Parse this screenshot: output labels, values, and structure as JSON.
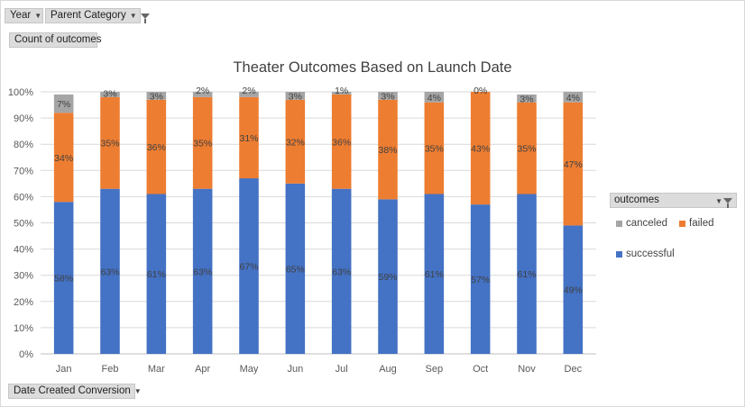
{
  "filters": {
    "year": "Year",
    "parent_category": "Parent Category",
    "values_field": "Count of outcomes",
    "axis_field": "Date Created Conversion"
  },
  "legend": {
    "title": "outcomes",
    "items": [
      {
        "name": "canceled",
        "color": "#a5a5a5"
      },
      {
        "name": "failed",
        "color": "#ed7d31"
      },
      {
        "name": "successful",
        "color": "#4472c4"
      }
    ]
  },
  "chart_data": {
    "type": "bar",
    "stacked": true,
    "title": "Theater Outcomes Based on Launch Date",
    "categories": [
      "Jan",
      "Feb",
      "Mar",
      "Apr",
      "May",
      "Jun",
      "Jul",
      "Aug",
      "Sep",
      "Oct",
      "Nov",
      "Dec"
    ],
    "series": [
      {
        "name": "successful",
        "color": "#4472c4",
        "values": [
          58,
          63,
          61,
          63,
          67,
          65,
          63,
          59,
          61,
          57,
          61,
          49
        ]
      },
      {
        "name": "failed",
        "color": "#ed7d31",
        "values": [
          34,
          35,
          36,
          35,
          31,
          32,
          36,
          38,
          35,
          43,
          35,
          47
        ]
      },
      {
        "name": "canceled",
        "color": "#a5a5a5",
        "values": [
          7,
          3,
          3,
          2,
          2,
          3,
          1,
          3,
          4,
          0,
          3,
          4
        ]
      }
    ],
    "ylim": [
      0,
      100
    ],
    "yticks": [
      "0%",
      "10%",
      "20%",
      "30%",
      "40%",
      "50%",
      "60%",
      "70%",
      "80%",
      "90%",
      "100%"
    ],
    "grid": true,
    "legend": "right"
  }
}
